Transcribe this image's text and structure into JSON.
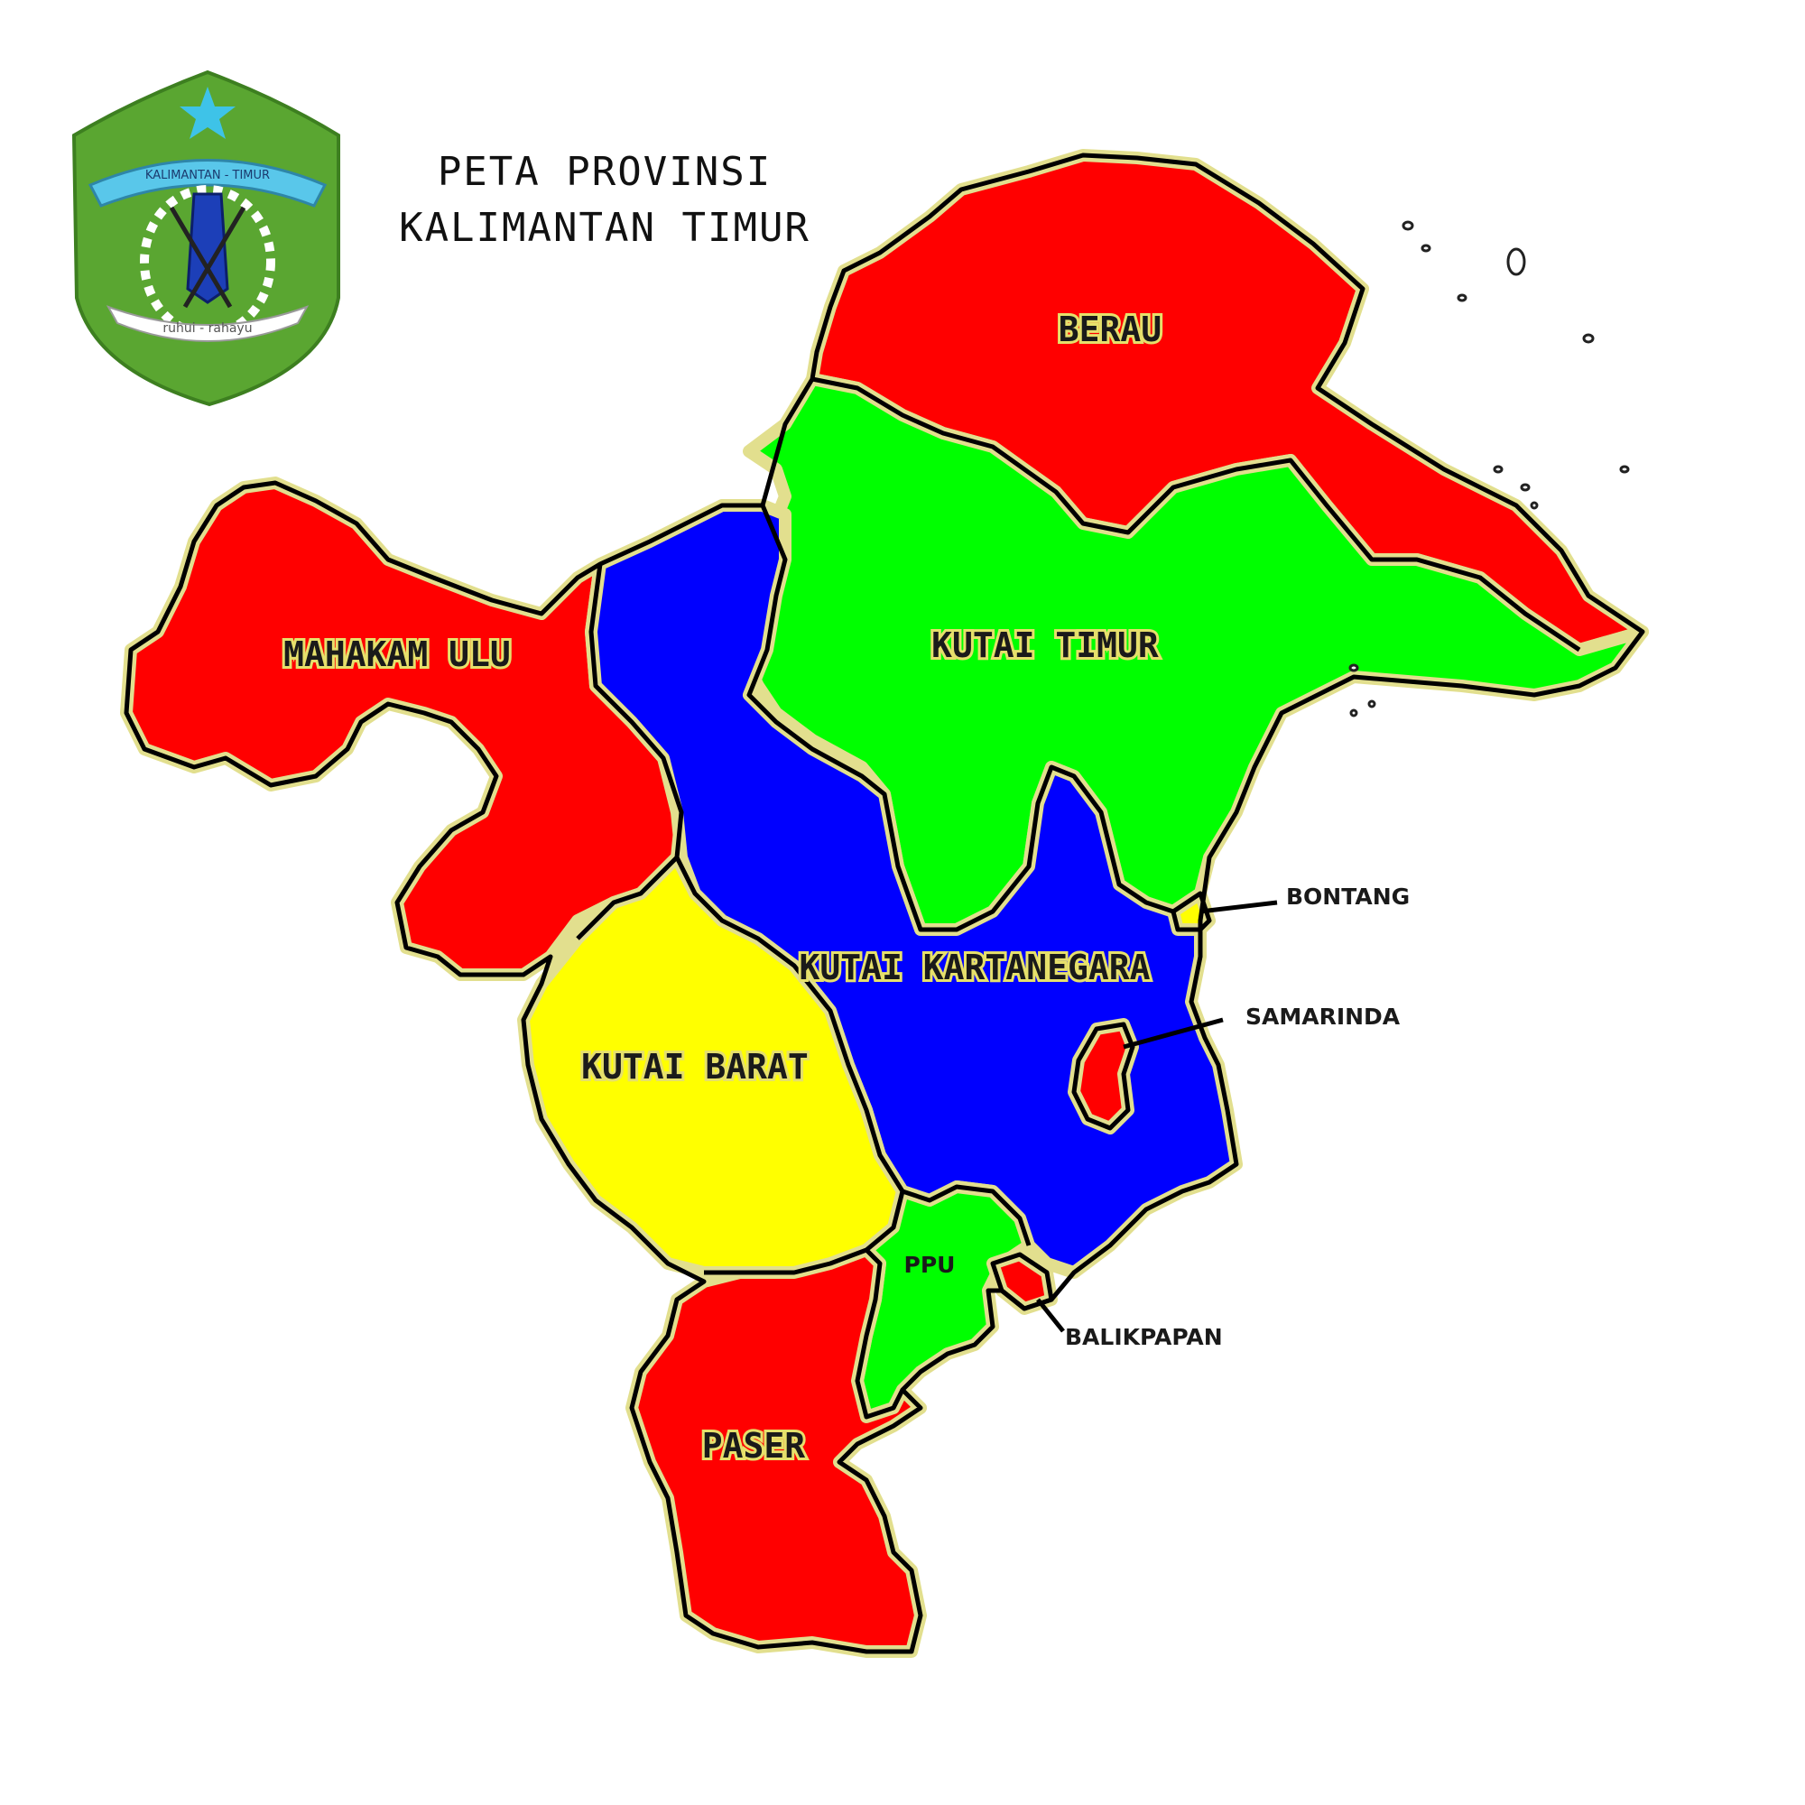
{
  "title": {
    "line1": "PETA PROVINSI",
    "line2": "KALIMANTAN TIMUR"
  },
  "emblem": {
    "ribbon_text": "KALIMANTAN - TIMUR",
    "motto": "ruhui - rahayu",
    "colors": {
      "shield": "#5aa631",
      "ribbon": "#59c7ea",
      "star": "#3ec3e8"
    }
  },
  "regions": [
    {
      "id": "berau",
      "label": "BERAU",
      "color": "#ff0000"
    },
    {
      "id": "kutai-timur",
      "label": "KUTAI TIMUR",
      "color": "#00ff00"
    },
    {
      "id": "mahakam-ulu",
      "label": "MAHAKAM ULU",
      "color": "#ff0000"
    },
    {
      "id": "kutai-kartanegara",
      "label": "KUTAI KARTANEGARA",
      "color": "#0000ff"
    },
    {
      "id": "kutai-barat",
      "label": "KUTAI BARAT",
      "color": "#ffff00"
    },
    {
      "id": "ppu",
      "label": "PPU",
      "color": "#00ff00"
    },
    {
      "id": "paser",
      "label": "PASER",
      "color": "#ff0000"
    }
  ],
  "cities": [
    {
      "id": "bontang",
      "label": "BONTANG",
      "color": "#ffff00"
    },
    {
      "id": "samarinda",
      "label": "SAMARINDA",
      "color": "#ff0000"
    },
    {
      "id": "balikpapan",
      "label": "BALIKPAPAN",
      "color": "#ff0000"
    }
  ]
}
